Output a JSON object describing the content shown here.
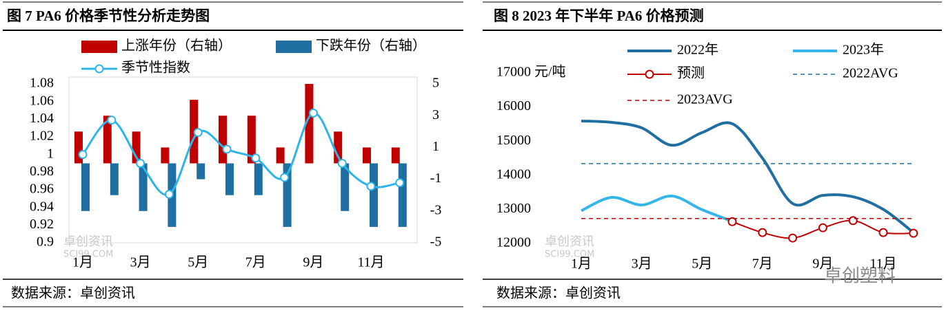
{
  "chart_data": [
    {
      "type": "bar",
      "title": "图 7 PA6 价格季节性分析走势图",
      "source": "数据来源：卓创资讯",
      "watermark": "卓创资讯",
      "watermark_site": "SCI99.COM",
      "categories": [
        "1月",
        null,
        "3月",
        null,
        "5月",
        null,
        "7月",
        null,
        "9月",
        null,
        "11月",
        null
      ],
      "ylim": [
        0.9,
        1.08
      ],
      "yticks": [
        0.9,
        0.92,
        0.94,
        0.96,
        0.98,
        1,
        1.02,
        1.04,
        1.06,
        1.08
      ],
      "y2lim": [
        -5,
        5
      ],
      "y2ticks": [
        -5,
        -3,
        -1,
        1,
        3,
        5
      ],
      "series": [
        {
          "name": "上涨年份（右轴）",
          "color": "#c00000",
          "axis": "y2",
          "values": [
            2,
            3,
            2,
            1,
            4,
            3,
            3,
            1,
            5,
            2,
            1,
            1
          ]
        },
        {
          "name": "下跌年份（右轴）",
          "color": "#1f6fa3",
          "axis": "y2",
          "values": [
            -3,
            -2,
            -3,
            -4,
            -1,
            -2,
            -2,
            -4,
            0,
            -3,
            -4,
            -4
          ]
        },
        {
          "name": "季节性指数",
          "type": "line",
          "marker": "circle",
          "color": "#2db5e8",
          "values": [
            1.0,
            1.039,
            0.99,
            0.955,
            1.025,
            1.006,
            0.996,
            0.974,
            1.047,
            0.99,
            0.964,
            0.968
          ]
        }
      ]
    },
    {
      "type": "line",
      "title": "图 8 2023 年下半年 PA6 价格预测",
      "source": "数据来源：卓创资讯",
      "watermark": "卓创资讯",
      "watermark_site": "SCI99.COM",
      "brand": "卓创塑料",
      "categories": [
        "1月",
        null,
        "3月",
        null,
        "5月",
        null,
        "7月",
        null,
        "9月",
        null,
        "11月",
        null
      ],
      "ylim": [
        12000,
        17000
      ],
      "yticks": [
        12000,
        13000,
        14000,
        15000,
        16000,
        {
          "value": 17000,
          "label": "17000 元/吨"
        }
      ],
      "series": [
        {
          "name": "2022年",
          "color": "#1f6fa3",
          "width": 4,
          "values": [
            15590,
            15550,
            15390,
            14880,
            15250,
            15510,
            14500,
            13170,
            13410,
            13370,
            13000,
            12320
          ]
        },
        {
          "name": "2023年",
          "color": "#35b6ea",
          "width": 4,
          "values": [
            12960,
            13350,
            13130,
            13390,
            12990,
            12650,
            null,
            null,
            null,
            null,
            null,
            null
          ]
        },
        {
          "name": "预测",
          "color": "#c00000",
          "width": 2,
          "marker": "circle",
          "values": [
            null,
            null,
            null,
            null,
            null,
            12640,
            12320,
            12160,
            12460,
            12670,
            12320,
            12300
          ]
        },
        {
          "name": "2022AVG",
          "color": "#1f6fa3",
          "width": 1.5,
          "dash": true,
          "values": [
            14340,
            14340,
            14340,
            14340,
            14340,
            14340,
            14340,
            14340,
            14340,
            14340,
            14340,
            14340
          ]
        },
        {
          "name": "2023AVG",
          "color": "#c00000",
          "width": 1.5,
          "dash": true,
          "values": [
            12730,
            12730,
            12730,
            12730,
            12730,
            12730,
            12730,
            12730,
            12730,
            12730,
            12730,
            12730
          ]
        }
      ]
    }
  ]
}
